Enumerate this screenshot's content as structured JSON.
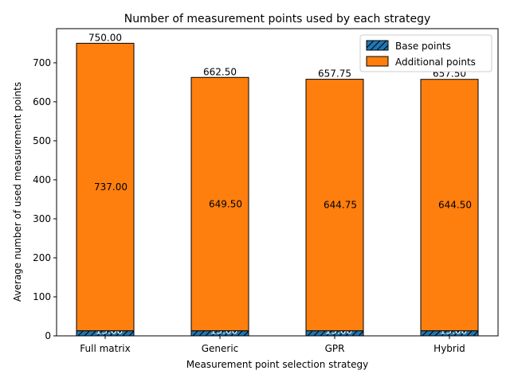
{
  "chart_data": {
    "type": "bar",
    "stacked": true,
    "title": "Number of measurement points used by each strategy",
    "xlabel": "Measurement point selection strategy",
    "ylabel": "Average number of used measurement points",
    "categories": [
      "Full matrix",
      "Generic",
      "GPR",
      "Hybrid"
    ],
    "series": [
      {
        "name": "Base points",
        "values": [
          13.0,
          13.0,
          13.0,
          13.0
        ],
        "labels": [
          "13.00",
          "13.00",
          "13.00",
          "13.00"
        ],
        "color": "#1f77b4",
        "hatch": "diagonal"
      },
      {
        "name": "Additional points",
        "values": [
          737.0,
          649.5,
          644.75,
          644.5
        ],
        "labels": [
          "737.00",
          "649.50",
          "644.75",
          "644.50"
        ],
        "color": "#ff7f0e"
      }
    ],
    "totals": [
      750.0,
      662.5,
      657.75,
      657.5
    ],
    "total_labels": [
      "750.00",
      "662.50",
      "657.75",
      "657.50"
    ],
    "yticks": [
      0,
      100,
      200,
      300,
      400,
      500,
      600,
      700
    ],
    "ylim": [
      0,
      787.5
    ],
    "grid": false,
    "legend_position": "upper right"
  }
}
